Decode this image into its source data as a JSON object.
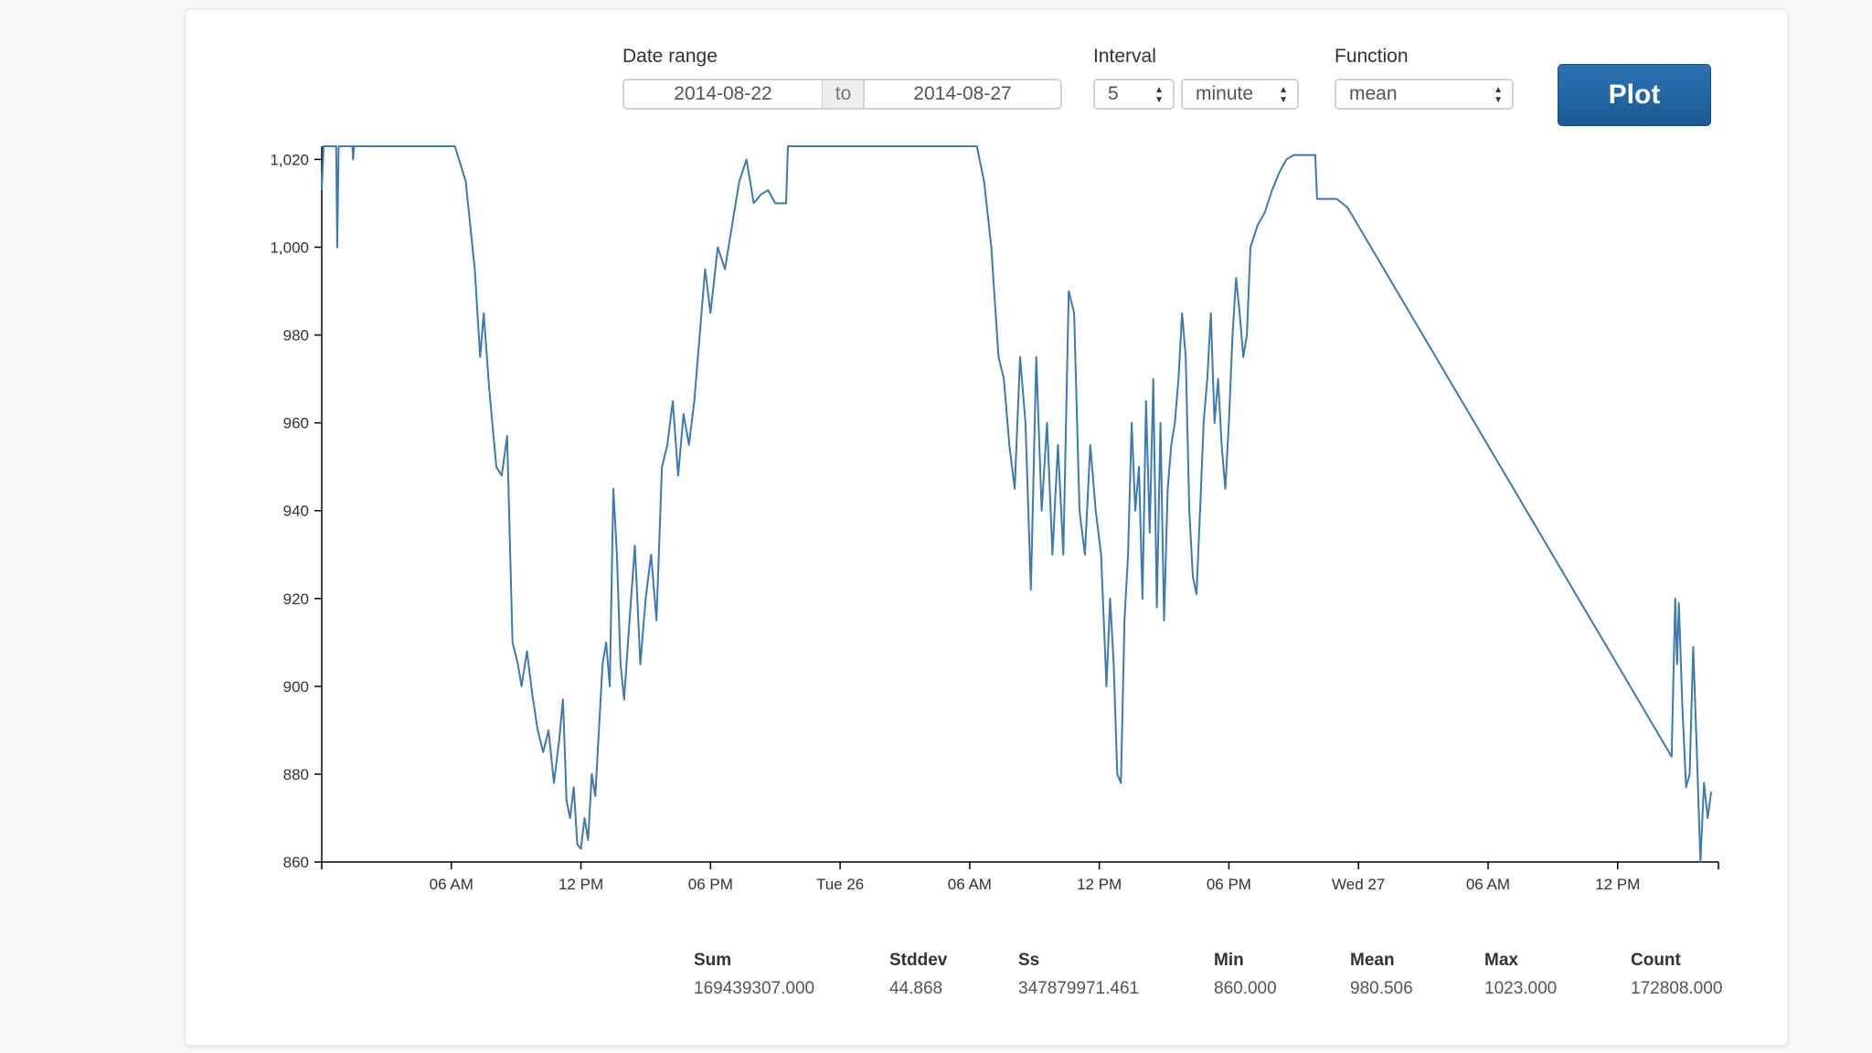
{
  "controls": {
    "date_range_label": "Date range",
    "date_from": "2014-08-22",
    "date_to_sep": "to",
    "date_to": "2014-08-27",
    "interval_label": "Interval",
    "interval_value": "5",
    "interval_unit": "minute",
    "function_label": "Function",
    "function_value": "mean",
    "plot_label": "Plot"
  },
  "colors": {
    "line": "#3d7ab0",
    "button": "#1f63a3"
  },
  "chart_data": {
    "type": "line",
    "ylim": [
      860,
      1023
    ],
    "yticks": [
      860,
      880,
      900,
      920,
      940,
      960,
      980,
      1000,
      1020
    ],
    "ytick_labels": [
      "860",
      "880",
      "900",
      "920",
      "940",
      "960",
      "980",
      "1,000",
      "1,020"
    ],
    "xlim": [
      "2014-08-25 00:00",
      "2014-08-27 16:40"
    ],
    "xticks": [
      {
        "t": "2014-08-25 06:00",
        "label": "06 AM"
      },
      {
        "t": "2014-08-25 12:00",
        "label": "12 PM"
      },
      {
        "t": "2014-08-25 18:00",
        "label": "06 PM"
      },
      {
        "t": "2014-08-26 00:00",
        "label": "Tue 26"
      },
      {
        "t": "2014-08-26 06:00",
        "label": "06 AM"
      },
      {
        "t": "2014-08-26 12:00",
        "label": "12 PM"
      },
      {
        "t": "2014-08-26 18:00",
        "label": "06 PM"
      },
      {
        "t": "2014-08-27 00:00",
        "label": "Wed 27"
      },
      {
        "t": "2014-08-27 06:00",
        "label": "06 AM"
      },
      {
        "t": "2014-08-27 12:00",
        "label": "12 PM"
      }
    ],
    "series": [
      {
        "points": [
          [
            "2014-08-25 00:00",
            1013
          ],
          [
            "2014-08-25 00:05",
            1023
          ],
          [
            "2014-08-25 00:40",
            1023
          ],
          [
            "2014-08-25 00:43",
            1000
          ],
          [
            "2014-08-25 00:47",
            1023
          ],
          [
            "2014-08-25 01:25",
            1023
          ],
          [
            "2014-08-25 01:27",
            1020
          ],
          [
            "2014-08-25 01:30",
            1023
          ],
          [
            "2014-08-25 06:10",
            1023
          ],
          [
            "2014-08-25 06:40",
            1015
          ],
          [
            "2014-08-25 07:05",
            995
          ],
          [
            "2014-08-25 07:20",
            975
          ],
          [
            "2014-08-25 07:30",
            985
          ],
          [
            "2014-08-25 07:45",
            968
          ],
          [
            "2014-08-25 08:05",
            950
          ],
          [
            "2014-08-25 08:20",
            948
          ],
          [
            "2014-08-25 08:35",
            957
          ],
          [
            "2014-08-25 08:50",
            910
          ],
          [
            "2014-08-25 09:05",
            905
          ],
          [
            "2014-08-25 09:15",
            900
          ],
          [
            "2014-08-25 09:30",
            908
          ],
          [
            "2014-08-25 09:45",
            898
          ],
          [
            "2014-08-25 10:00",
            890
          ],
          [
            "2014-08-25 10:15",
            885
          ],
          [
            "2014-08-25 10:30",
            890
          ],
          [
            "2014-08-25 10:45",
            878
          ],
          [
            "2014-08-25 11:00",
            888
          ],
          [
            "2014-08-25 11:10",
            897
          ],
          [
            "2014-08-25 11:20",
            874
          ],
          [
            "2014-08-25 11:30",
            870
          ],
          [
            "2014-08-25 11:40",
            877
          ],
          [
            "2014-08-25 11:50",
            864
          ],
          [
            "2014-08-25 12:00",
            863
          ],
          [
            "2014-08-25 12:10",
            870
          ],
          [
            "2014-08-25 12:20",
            865
          ],
          [
            "2014-08-25 12:30",
            880
          ],
          [
            "2014-08-25 12:40",
            875
          ],
          [
            "2014-08-25 12:50",
            890
          ],
          [
            "2014-08-25 13:00",
            905
          ],
          [
            "2014-08-25 13:10",
            910
          ],
          [
            "2014-08-25 13:20",
            900
          ],
          [
            "2014-08-25 13:30",
            945
          ],
          [
            "2014-08-25 13:40",
            930
          ],
          [
            "2014-08-25 13:50",
            905
          ],
          [
            "2014-08-25 14:00",
            897
          ],
          [
            "2014-08-25 14:15",
            915
          ],
          [
            "2014-08-25 14:30",
            932
          ],
          [
            "2014-08-25 14:45",
            905
          ],
          [
            "2014-08-25 15:00",
            920
          ],
          [
            "2014-08-25 15:15",
            930
          ],
          [
            "2014-08-25 15:30",
            915
          ],
          [
            "2014-08-25 15:45",
            950
          ],
          [
            "2014-08-25 16:00",
            955
          ],
          [
            "2014-08-25 16:15",
            965
          ],
          [
            "2014-08-25 16:30",
            948
          ],
          [
            "2014-08-25 16:45",
            962
          ],
          [
            "2014-08-25 17:00",
            955
          ],
          [
            "2014-08-25 17:15",
            965
          ],
          [
            "2014-08-25 17:30",
            980
          ],
          [
            "2014-08-25 17:45",
            995
          ],
          [
            "2014-08-25 18:00",
            985
          ],
          [
            "2014-08-25 18:20",
            1000
          ],
          [
            "2014-08-25 18:40",
            995
          ],
          [
            "2014-08-25 19:00",
            1005
          ],
          [
            "2014-08-25 19:20",
            1015
          ],
          [
            "2014-08-25 19:40",
            1020
          ],
          [
            "2014-08-25 20:00",
            1010
          ],
          [
            "2014-08-25 20:20",
            1012
          ],
          [
            "2014-08-25 20:40",
            1013
          ],
          [
            "2014-08-25 21:00",
            1010
          ],
          [
            "2014-08-25 21:30",
            1010
          ],
          [
            "2014-08-25 21:35",
            1023
          ],
          [
            "2014-08-26 06:20",
            1023
          ],
          [
            "2014-08-26 06:40",
            1015
          ],
          [
            "2014-08-26 07:00",
            1000
          ],
          [
            "2014-08-26 07:20",
            975
          ],
          [
            "2014-08-26 07:35",
            970
          ],
          [
            "2014-08-26 07:50",
            955
          ],
          [
            "2014-08-26 08:05",
            945
          ],
          [
            "2014-08-26 08:20",
            975
          ],
          [
            "2014-08-26 08:35",
            960
          ],
          [
            "2014-08-26 08:50",
            922
          ],
          [
            "2014-08-26 09:05",
            975
          ],
          [
            "2014-08-26 09:20",
            940
          ],
          [
            "2014-08-26 09:35",
            960
          ],
          [
            "2014-08-26 09:50",
            930
          ],
          [
            "2014-08-26 10:05",
            955
          ],
          [
            "2014-08-26 10:20",
            930
          ],
          [
            "2014-08-26 10:35",
            990
          ],
          [
            "2014-08-26 10:50",
            985
          ],
          [
            "2014-08-26 11:05",
            940
          ],
          [
            "2014-08-26 11:20",
            930
          ],
          [
            "2014-08-26 11:35",
            955
          ],
          [
            "2014-08-26 11:50",
            940
          ],
          [
            "2014-08-26 12:05",
            930
          ],
          [
            "2014-08-26 12:20",
            900
          ],
          [
            "2014-08-26 12:30",
            920
          ],
          [
            "2014-08-26 12:40",
            905
          ],
          [
            "2014-08-26 12:50",
            880
          ],
          [
            "2014-08-26 13:00",
            878
          ],
          [
            "2014-08-26 13:10",
            915
          ],
          [
            "2014-08-26 13:20",
            930
          ],
          [
            "2014-08-26 13:30",
            960
          ],
          [
            "2014-08-26 13:40",
            940
          ],
          [
            "2014-08-26 13:50",
            950
          ],
          [
            "2014-08-26 14:00",
            920
          ],
          [
            "2014-08-26 14:10",
            965
          ],
          [
            "2014-08-26 14:20",
            935
          ],
          [
            "2014-08-26 14:30",
            970
          ],
          [
            "2014-08-26 14:40",
            918
          ],
          [
            "2014-08-26 14:50",
            960
          ],
          [
            "2014-08-26 15:00",
            915
          ],
          [
            "2014-08-26 15:10",
            945
          ],
          [
            "2014-08-26 15:20",
            955
          ],
          [
            "2014-08-26 15:30",
            960
          ],
          [
            "2014-08-26 15:40",
            970
          ],
          [
            "2014-08-26 15:50",
            985
          ],
          [
            "2014-08-26 16:00",
            975
          ],
          [
            "2014-08-26 16:10",
            940
          ],
          [
            "2014-08-26 16:20",
            925
          ],
          [
            "2014-08-26 16:30",
            921
          ],
          [
            "2014-08-26 16:40",
            940
          ],
          [
            "2014-08-26 16:50",
            960
          ],
          [
            "2014-08-26 17:00",
            970
          ],
          [
            "2014-08-26 17:10",
            985
          ],
          [
            "2014-08-26 17:20",
            960
          ],
          [
            "2014-08-26 17:30",
            970
          ],
          [
            "2014-08-26 17:40",
            955
          ],
          [
            "2014-08-26 17:50",
            945
          ],
          [
            "2014-08-26 18:00",
            960
          ],
          [
            "2014-08-26 18:10",
            980
          ],
          [
            "2014-08-26 18:20",
            993
          ],
          [
            "2014-08-26 18:30",
            985
          ],
          [
            "2014-08-26 18:40",
            975
          ],
          [
            "2014-08-26 18:50",
            980
          ],
          [
            "2014-08-26 19:00",
            1000
          ],
          [
            "2014-08-26 19:20",
            1005
          ],
          [
            "2014-08-26 19:40",
            1008
          ],
          [
            "2014-08-26 20:00",
            1013
          ],
          [
            "2014-08-26 20:20",
            1017
          ],
          [
            "2014-08-26 20:40",
            1020
          ],
          [
            "2014-08-26 21:00",
            1021
          ],
          [
            "2014-08-26 22:00",
            1021
          ],
          [
            "2014-08-26 22:05",
            1011
          ],
          [
            "2014-08-26 23:00",
            1011
          ],
          [
            "2014-08-26 23:30",
            1009
          ],
          [
            "2014-08-27 14:30",
            884
          ],
          [
            "2014-08-27 14:40",
            920
          ],
          [
            "2014-08-27 14:45",
            905
          ],
          [
            "2014-08-27 14:50",
            919
          ],
          [
            "2014-08-27 15:00",
            895
          ],
          [
            "2014-08-27 15:10",
            877
          ],
          [
            "2014-08-27 15:20",
            880
          ],
          [
            "2014-08-27 15:30",
            909
          ],
          [
            "2014-08-27 15:40",
            885
          ],
          [
            "2014-08-27 15:50",
            860
          ],
          [
            "2014-08-27 16:00",
            878
          ],
          [
            "2014-08-27 16:10",
            870
          ],
          [
            "2014-08-27 16:20",
            876
          ]
        ]
      }
    ]
  },
  "stats": [
    {
      "label": "Sum",
      "value": "169439307.000"
    },
    {
      "label": "Stddev",
      "value": "44.868"
    },
    {
      "label": "Ss",
      "value": "347879971.461"
    },
    {
      "label": "Min",
      "value": "860.000"
    },
    {
      "label": "Mean",
      "value": "980.506"
    },
    {
      "label": "Max",
      "value": "1023.000"
    },
    {
      "label": "Count",
      "value": "172808.000"
    }
  ]
}
